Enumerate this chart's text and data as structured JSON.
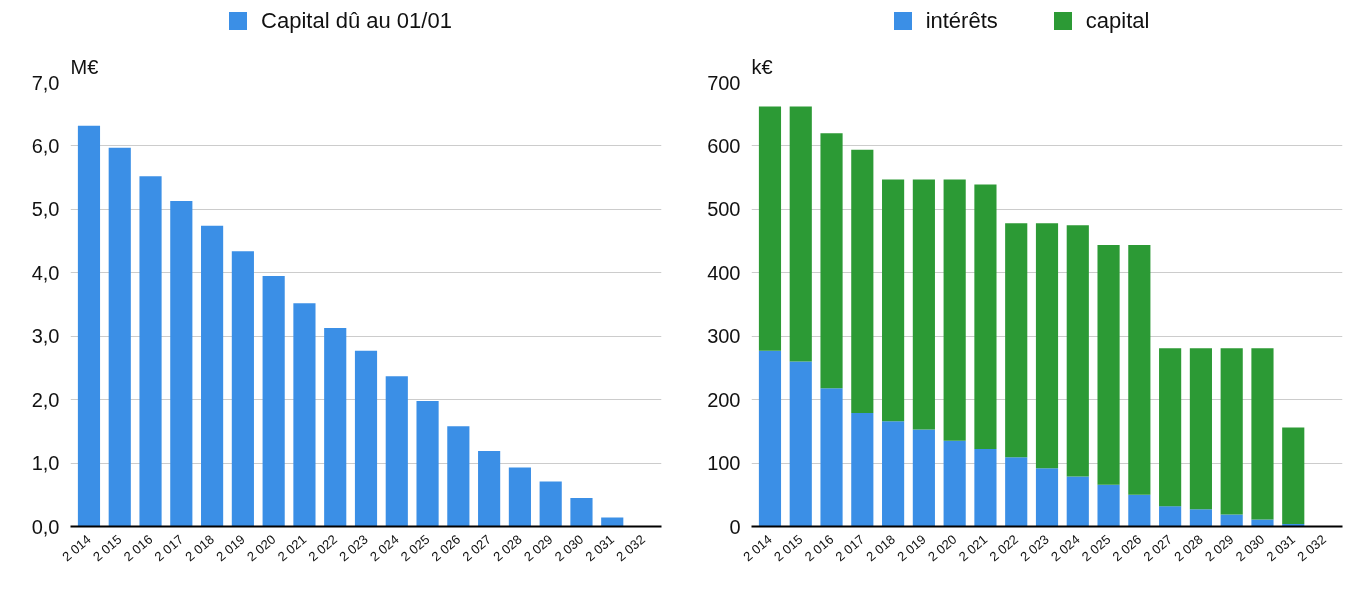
{
  "chart_data": [
    {
      "type": "bar",
      "ylabel": "M€",
      "categories": [
        "2 014",
        "2 015",
        "2 016",
        "2 017",
        "2 018",
        "2 019",
        "2 020",
        "2 021",
        "2 022",
        "2 023",
        "2 024",
        "2 025",
        "2 026",
        "2 027",
        "2 028",
        "2 029",
        "2 030",
        "2 031",
        "2 032"
      ],
      "series": [
        {
          "name": "Capital dû au 01/01",
          "color": "#3b8fe6",
          "values": [
            6.32,
            5.97,
            5.52,
            5.13,
            4.74,
            4.34,
            3.95,
            3.52,
            3.13,
            2.77,
            2.37,
            1.98,
            1.58,
            1.19,
            0.93,
            0.71,
            0.45,
            0.14,
            0
          ]
        }
      ],
      "ylim": [
        0,
        7
      ],
      "yticks": [
        {
          "value": 0,
          "label": "0,0"
        },
        {
          "value": 1,
          "label": "1,0"
        },
        {
          "value": 2,
          "label": "2,0"
        },
        {
          "value": 3,
          "label": "3,0"
        },
        {
          "value": 4,
          "label": "4,0"
        },
        {
          "value": 5,
          "label": "5,0"
        },
        {
          "value": 6,
          "label": "6,0"
        },
        {
          "value": 7,
          "label": "7,0"
        }
      ],
      "grid": "y",
      "legend": "top"
    },
    {
      "type": "bar",
      "stacked": true,
      "ylabel": "k€",
      "categories": [
        "2 014",
        "2 015",
        "2 016",
        "2 017",
        "2 018",
        "2 019",
        "2 020",
        "2 021",
        "2 022",
        "2 023",
        "2 024",
        "2 025",
        "2 026",
        "2 027",
        "2 028",
        "2 029",
        "2 030",
        "2 031",
        "2 032"
      ],
      "series": [
        {
          "name": "intérêts",
          "color": "#3b8fe6",
          "values": [
            277,
            260,
            218,
            179,
            166,
            153,
            135,
            122,
            109,
            92,
            79,
            66,
            50,
            32,
            27,
            19,
            11,
            4,
            0
          ]
        },
        {
          "name": "capital",
          "color": "#2c9a35",
          "values": [
            385,
            402,
            402,
            415,
            381,
            394,
            412,
            417,
            369,
            386,
            396,
            378,
            394,
            249,
            254,
            262,
            270,
            152,
            0
          ]
        }
      ],
      "ylim": [
        0,
        700
      ],
      "yticks": [
        0,
        100,
        200,
        300,
        400,
        500,
        600,
        700
      ],
      "grid": "y",
      "legend": "top"
    }
  ]
}
